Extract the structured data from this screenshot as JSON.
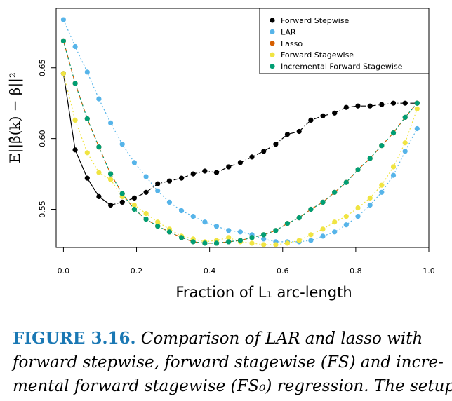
{
  "chart_data": {
    "type": "scatter",
    "title": "",
    "xlabel": "Fraction of L₁ arc-length",
    "ylabel": "E||β̂(k) − β||²",
    "xlim": [
      -0.02,
      1.0
    ],
    "ylim": [
      0.523,
      0.692
    ],
    "xticks": [
      0.0,
      0.2,
      0.4,
      0.6,
      0.8,
      1.0
    ],
    "xtick_labels": [
      "0.0",
      "0.2",
      "0.4",
      "0.6",
      "0.8",
      "1.0"
    ],
    "yticks": [
      0.55,
      0.6,
      0.65
    ],
    "ytick_labels": [
      "0.55",
      "0.60",
      "0.65"
    ],
    "grid": false,
    "legend_position": "top-right",
    "series": [
      {
        "name": "Forward Stepwise",
        "color": "#000000",
        "line_style": "solid-then-dashdot",
        "x": [
          0.0,
          0.032,
          0.065,
          0.097,
          0.129,
          0.161,
          0.194,
          0.226,
          0.258,
          0.29,
          0.323,
          0.355,
          0.387,
          0.419,
          0.452,
          0.484,
          0.516,
          0.548,
          0.581,
          0.613,
          0.645,
          0.677,
          0.71,
          0.742,
          0.774,
          0.806,
          0.839,
          0.871,
          0.903,
          0.935,
          0.968
        ],
        "y": [
          0.646,
          0.592,
          0.572,
          0.559,
          0.553,
          0.555,
          0.558,
          0.562,
          0.568,
          0.57,
          0.572,
          0.575,
          0.577,
          0.576,
          0.58,
          0.583,
          0.587,
          0.591,
          0.596,
          0.603,
          0.605,
          0.613,
          0.616,
          0.618,
          0.622,
          0.623,
          0.623,
          0.624,
          0.625,
          0.625,
          0.625
        ]
      },
      {
        "name": "LAR",
        "color": "#56b4e9",
        "line_style": "dotted",
        "x": [
          0.0,
          0.032,
          0.065,
          0.097,
          0.129,
          0.161,
          0.194,
          0.226,
          0.258,
          0.29,
          0.323,
          0.355,
          0.387,
          0.419,
          0.452,
          0.484,
          0.516,
          0.548,
          0.581,
          0.613,
          0.645,
          0.677,
          0.71,
          0.742,
          0.774,
          0.806,
          0.839,
          0.871,
          0.903,
          0.935,
          0.968
        ],
        "y": [
          0.684,
          0.665,
          0.647,
          0.628,
          0.611,
          0.596,
          0.583,
          0.573,
          0.563,
          0.555,
          0.549,
          0.545,
          0.541,
          0.538,
          0.535,
          0.534,
          0.532,
          0.529,
          0.527,
          0.527,
          0.527,
          0.528,
          0.531,
          0.534,
          0.539,
          0.545,
          0.553,
          0.562,
          0.574,
          0.591,
          0.607
        ]
      },
      {
        "name": "Lasso",
        "color": "#d55e00",
        "line_style": "dashed",
        "x": [
          0.0,
          0.032,
          0.065,
          0.097,
          0.129,
          0.161,
          0.194,
          0.226,
          0.258,
          0.29,
          0.323,
          0.355,
          0.387,
          0.419,
          0.452,
          0.484,
          0.516,
          0.548,
          0.581,
          0.613,
          0.645,
          0.677,
          0.71,
          0.742,
          0.774,
          0.806,
          0.839,
          0.871,
          0.903,
          0.935,
          0.968
        ],
        "y": [
          0.669,
          0.639,
          0.614,
          0.594,
          0.575,
          0.561,
          0.55,
          0.543,
          0.538,
          0.534,
          0.53,
          0.527,
          0.526,
          0.526,
          0.527,
          0.528,
          0.53,
          0.532,
          0.535,
          0.54,
          0.544,
          0.55,
          0.555,
          0.562,
          0.569,
          0.578,
          0.586,
          0.595,
          0.604,
          0.615,
          0.625
        ]
      },
      {
        "name": "Forward Stagewise",
        "color": "#f0e442",
        "line_style": "dotted",
        "x": [
          0.0,
          0.032,
          0.065,
          0.097,
          0.129,
          0.161,
          0.194,
          0.226,
          0.258,
          0.29,
          0.323,
          0.355,
          0.387,
          0.419,
          0.452,
          0.484,
          0.516,
          0.548,
          0.581,
          0.613,
          0.645,
          0.677,
          0.71,
          0.742,
          0.774,
          0.806,
          0.839,
          0.871,
          0.903,
          0.935,
          0.968
        ],
        "y": [
          0.646,
          0.613,
          0.59,
          0.576,
          0.571,
          0.559,
          0.553,
          0.547,
          0.541,
          0.536,
          0.531,
          0.529,
          0.527,
          0.528,
          0.53,
          0.527,
          0.526,
          0.525,
          0.525,
          0.526,
          0.528,
          0.532,
          0.536,
          0.541,
          0.545,
          0.551,
          0.558,
          0.567,
          0.58,
          0.597,
          0.621
        ]
      },
      {
        "name": "Incremental Forward Stagewise",
        "color": "#009e73",
        "line_style": "dotted",
        "x": [
          0.0,
          0.032,
          0.065,
          0.097,
          0.129,
          0.161,
          0.194,
          0.226,
          0.258,
          0.29,
          0.323,
          0.355,
          0.387,
          0.419,
          0.452,
          0.484,
          0.516,
          0.548,
          0.581,
          0.613,
          0.645,
          0.677,
          0.71,
          0.742,
          0.774,
          0.806,
          0.839,
          0.871,
          0.903,
          0.935,
          0.968
        ],
        "y": [
          0.669,
          0.639,
          0.614,
          0.594,
          0.575,
          0.561,
          0.55,
          0.543,
          0.538,
          0.534,
          0.53,
          0.527,
          0.526,
          0.526,
          0.527,
          0.528,
          0.53,
          0.532,
          0.535,
          0.54,
          0.544,
          0.55,
          0.555,
          0.562,
          0.569,
          0.578,
          0.586,
          0.595,
          0.604,
          0.615,
          0.625
        ]
      }
    ]
  },
  "caption": {
    "label": "FIGURE 3.16.",
    "line1": "Comparison of LAR and lasso with",
    "line2": "forward stepwise, forward stagewise (FS) and incre-",
    "line3": "mental forward stagewise (FS₀) regression. The setup"
  }
}
